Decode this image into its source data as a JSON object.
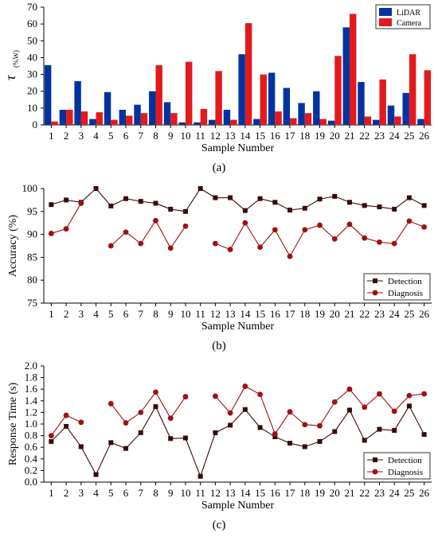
{
  "chart_data": [
    {
      "type": "bar",
      "panel_label": "(a)",
      "categories": [
        "1",
        "2",
        "3",
        "4",
        "5",
        "6",
        "7",
        "8",
        "9",
        "10",
        "11",
        "12",
        "13",
        "14",
        "15",
        "16",
        "17",
        "18",
        "19",
        "20",
        "21",
        "22",
        "23",
        "24",
        "25",
        "26"
      ],
      "xlabel": "Sample Number",
      "ylabel_symbol": "τ",
      "ylabel_unit": "(%W)",
      "ylim": [
        0,
        70
      ],
      "yticks": [
        0,
        10,
        20,
        30,
        40,
        50,
        60,
        70
      ],
      "legend_position": "top-right",
      "series": [
        {
          "name": "LiDAR",
          "color": "#0033a0",
          "values": [
            35.5,
            9,
            26,
            3.5,
            19.5,
            9,
            12,
            20,
            13.5,
            1.5,
            1.5,
            3,
            9,
            42,
            3.5,
            31,
            22,
            13,
            20,
            2.5,
            58,
            25.5,
            3,
            11.5,
            19,
            3.5
          ]
        },
        {
          "name": "Camera",
          "color": "#e31a1c",
          "values": [
            2,
            9,
            8,
            7.5,
            3,
            5.5,
            7,
            35.5,
            7,
            37.5,
            9.5,
            32,
            3,
            60.5,
            30,
            8,
            4,
            7,
            3.5,
            41,
            66,
            5,
            27,
            5,
            42,
            32.5
          ]
        }
      ]
    },
    {
      "type": "line",
      "panel_label": "(b)",
      "x": [
        1,
        2,
        3,
        4,
        5,
        6,
        7,
        8,
        9,
        10,
        11,
        12,
        13,
        14,
        15,
        16,
        17,
        18,
        19,
        20,
        21,
        22,
        23,
        24,
        25,
        26
      ],
      "xlabel": "Sample Number",
      "ylabel": "Accuracy (%)",
      "ylim": [
        75,
        100
      ],
      "yticks": [
        75,
        80,
        85,
        90,
        95,
        100
      ],
      "legend_position": "bottom-right",
      "series": [
        {
          "name": "Detection",
          "color": "#3a0a0a",
          "marker": "square",
          "values": [
            96.5,
            97.5,
            97,
            100,
            96.2,
            97.8,
            97.2,
            96.8,
            95.5,
            95,
            100,
            98,
            98,
            95.2,
            97.8,
            97,
            95.3,
            95.7,
            97.7,
            98.3,
            97,
            96.3,
            96,
            95.5,
            98,
            96.3
          ]
        },
        {
          "name": "Diagnosis",
          "color": "#a01010",
          "marker": "circle",
          "values": [
            90.2,
            91.2,
            96.8,
            null,
            87.5,
            90.5,
            88,
            93,
            87,
            91.8,
            null,
            88,
            86.7,
            92.5,
            87.2,
            91,
            85.2,
            91,
            92,
            89,
            92.2,
            89.2,
            88.3,
            88,
            92.9,
            91.6
          ]
        }
      ]
    },
    {
      "type": "line",
      "panel_label": "(c)",
      "x": [
        1,
        2,
        3,
        4,
        5,
        6,
        7,
        8,
        9,
        10,
        11,
        12,
        13,
        14,
        15,
        16,
        17,
        18,
        19,
        20,
        21,
        22,
        23,
        24,
        25,
        26
      ],
      "xlabel": "Sample Number",
      "ylabel": "Response Time (s)",
      "ylim": [
        0,
        2
      ],
      "yticks": [
        "0.0",
        "0.2",
        "0.4",
        "0.6",
        "0.8",
        "1.0",
        "1.2",
        "1.4",
        "1.6",
        "1.8",
        "2.0"
      ],
      "legend_position": "bottom-right",
      "series": [
        {
          "name": "Detection",
          "color": "#3a0a0a",
          "marker": "square",
          "values": [
            0.7,
            0.96,
            0.61,
            0.13,
            0.68,
            0.58,
            0.85,
            1.3,
            0.75,
            0.76,
            0.1,
            0.85,
            0.98,
            1.25,
            0.94,
            0.78,
            0.67,
            0.61,
            0.7,
            0.87,
            1.24,
            0.72,
            0.91,
            0.89,
            1.31,
            0.82
          ]
        },
        {
          "name": "Diagnosis",
          "color": "#a01010",
          "marker": "circle",
          "values": [
            0.8,
            1.15,
            1.03,
            null,
            1.35,
            1.02,
            1.2,
            1.55,
            1.1,
            1.47,
            null,
            1.48,
            1.19,
            1.65,
            1.51,
            0.83,
            1.21,
            0.99,
            0.97,
            1.38,
            1.6,
            1.29,
            1.52,
            1.22,
            1.49,
            1.52
          ]
        }
      ]
    }
  ]
}
